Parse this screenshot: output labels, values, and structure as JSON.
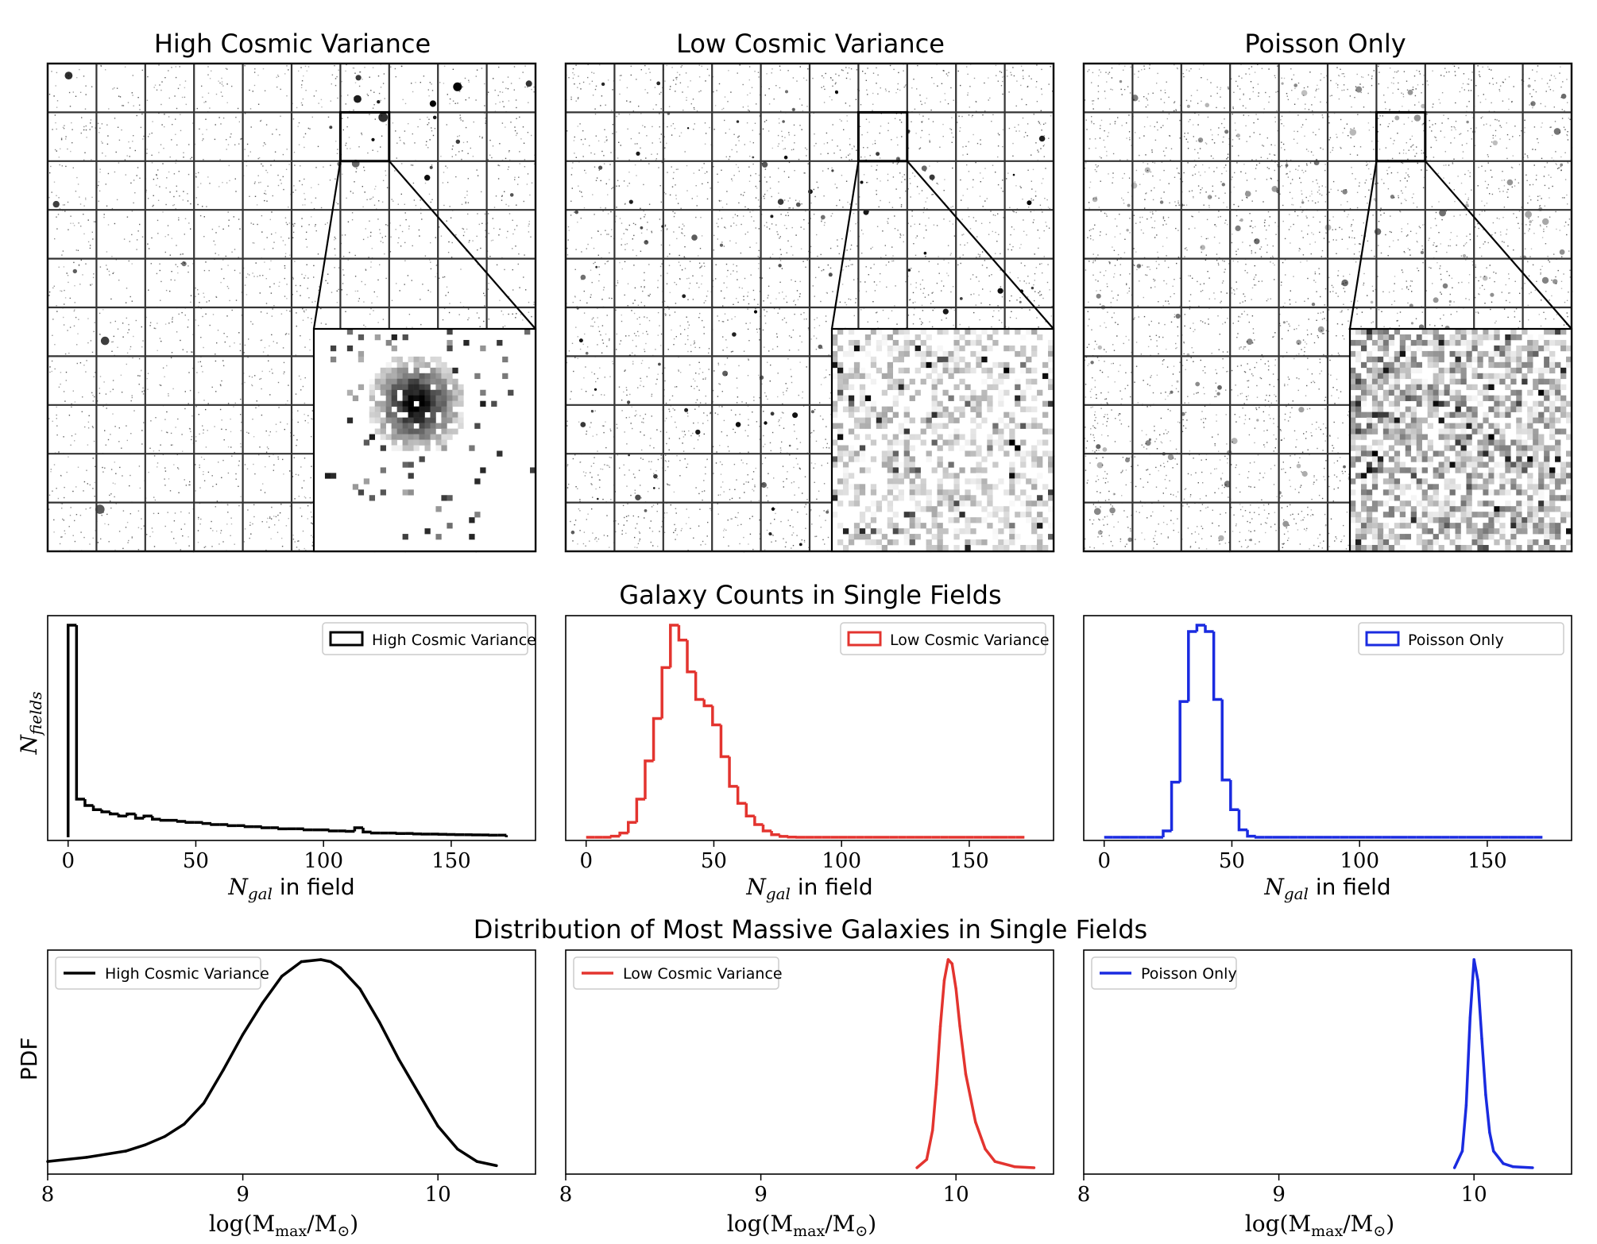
{
  "figure": {
    "images_row": [
      {
        "title": "High Cosmic Variance",
        "mode": "clustered"
      },
      {
        "title": "Low Cosmic Variance",
        "mode": "mild"
      },
      {
        "title": "Poisson Only",
        "mode": "poisson"
      }
    ],
    "counts_section_title": "Galaxy Counts in Single Fields",
    "mass_section_title": "Distribution of Most Massive Galaxies in Single Fields",
    "counts_ylabel": "N",
    "counts_ylabel_sub": "fields",
    "counts_xlabel": "N",
    "counts_xlabel_sub": "gal",
    "counts_xlabel_suffix": " in field",
    "mass_ylabel": "PDF",
    "mass_xlabel_pre": "log(M",
    "mass_xlabel_sub": "max",
    "mass_xlabel_mid": "/M",
    "mass_xlabel_sub2": "⊙",
    "mass_xlabel_post": ")",
    "colors": {
      "high": "#000000",
      "low": "#e3342f",
      "poisson": "#1a2be0"
    }
  },
  "chart_data": [
    {
      "type": "bar",
      "title": "",
      "legend": "High Cosmic Variance",
      "legend_position": "top-right",
      "color": "#000000",
      "xlim": [
        -8,
        183
      ],
      "xticks": [
        0,
        50,
        100,
        150
      ],
      "bin_width": 3.3,
      "bin_start": 0,
      "values": [
        1.0,
        0.18,
        0.15,
        0.13,
        0.12,
        0.11,
        0.1,
        0.11,
        0.09,
        0.1,
        0.085,
        0.08,
        0.08,
        0.075,
        0.07,
        0.07,
        0.065,
        0.06,
        0.06,
        0.055,
        0.055,
        0.05,
        0.05,
        0.045,
        0.045,
        0.04,
        0.04,
        0.04,
        0.035,
        0.035,
        0.035,
        0.03,
        0.03,
        0.028,
        0.045,
        0.025,
        0.02,
        0.02,
        0.02,
        0.018,
        0.018,
        0.016,
        0.015,
        0.015,
        0.014,
        0.013,
        0.012,
        0.012,
        0.011,
        0.011,
        0.01,
        0.01
      ]
    },
    {
      "type": "bar",
      "title": "",
      "legend": "Low Cosmic Variance",
      "legend_position": "top-right",
      "color": "#e3342f",
      "xlim": [
        -8,
        183
      ],
      "xticks": [
        0,
        50,
        100,
        150
      ],
      "bin_width": 3.3,
      "bin_start": 0,
      "values": [
        0,
        0,
        0,
        0.005,
        0.02,
        0.07,
        0.18,
        0.36,
        0.56,
        0.8,
        1.0,
        0.93,
        0.78,
        0.65,
        0.62,
        0.53,
        0.38,
        0.24,
        0.16,
        0.1,
        0.06,
        0.03,
        0.012,
        0.004,
        0.001,
        0,
        0,
        0,
        0,
        0,
        0,
        0,
        0,
        0,
        0,
        0,
        0,
        0,
        0,
        0,
        0,
        0,
        0,
        0,
        0,
        0,
        0,
        0,
        0,
        0,
        0,
        0
      ]
    },
    {
      "type": "bar",
      "title": "",
      "legend": "Poisson Only",
      "legend_position": "top-right",
      "color": "#1a2be0",
      "xlim": [
        -8,
        183
      ],
      "xticks": [
        0,
        50,
        100,
        150
      ],
      "bin_width": 3.3,
      "bin_start": 0,
      "values": [
        0,
        0,
        0,
        0,
        0,
        0,
        0,
        0.03,
        0.26,
        0.64,
        0.97,
        1.0,
        0.97,
        0.65,
        0.27,
        0.13,
        0.035,
        0.005,
        0,
        0,
        0,
        0,
        0,
        0,
        0,
        0,
        0,
        0,
        0,
        0,
        0,
        0,
        0,
        0,
        0,
        0,
        0,
        0,
        0,
        0,
        0,
        0,
        0,
        0,
        0,
        0,
        0,
        0,
        0,
        0,
        0,
        0
      ]
    },
    {
      "type": "line",
      "title": "",
      "legend": "High Cosmic Variance",
      "legend_position": "top-left",
      "color": "#000000",
      "xlim": [
        8,
        10.5
      ],
      "xticks": [
        8,
        9,
        10
      ],
      "x": [
        8.0,
        8.2,
        8.4,
        8.5,
        8.6,
        8.7,
        8.8,
        8.9,
        9.0,
        9.1,
        9.2,
        9.3,
        9.4,
        9.45,
        9.5,
        9.6,
        9.7,
        9.8,
        9.9,
        10.0,
        10.1,
        10.2,
        10.3
      ],
      "y": [
        0.03,
        0.05,
        0.08,
        0.11,
        0.15,
        0.21,
        0.31,
        0.47,
        0.64,
        0.79,
        0.92,
        0.99,
        1.0,
        0.99,
        0.96,
        0.86,
        0.7,
        0.52,
        0.36,
        0.2,
        0.09,
        0.03,
        0.01
      ]
    },
    {
      "type": "line",
      "title": "",
      "legend": "Low Cosmic Variance",
      "legend_position": "top-left",
      "color": "#e3342f",
      "xlim": [
        8,
        10.5
      ],
      "xticks": [
        8,
        9,
        10
      ],
      "x": [
        9.8,
        9.85,
        9.88,
        9.9,
        9.92,
        9.94,
        9.96,
        9.98,
        10.0,
        10.02,
        10.05,
        10.1,
        10.15,
        10.2,
        10.3,
        10.4
      ],
      "y": [
        0.0,
        0.04,
        0.18,
        0.4,
        0.68,
        0.9,
        1.0,
        0.98,
        0.86,
        0.68,
        0.45,
        0.22,
        0.09,
        0.03,
        0.005,
        0.0
      ]
    },
    {
      "type": "line",
      "title": "",
      "legend": "Poisson Only",
      "legend_position": "top-left",
      "color": "#1a2be0",
      "xlim": [
        8,
        10.5
      ],
      "xticks": [
        8,
        9,
        10
      ],
      "x": [
        9.9,
        9.94,
        9.96,
        9.98,
        10.0,
        10.02,
        10.04,
        10.06,
        10.08,
        10.1,
        10.15,
        10.2,
        10.3
      ],
      "y": [
        0.0,
        0.08,
        0.3,
        0.72,
        1.0,
        0.9,
        0.62,
        0.35,
        0.17,
        0.08,
        0.02,
        0.005,
        0.0
      ]
    }
  ]
}
